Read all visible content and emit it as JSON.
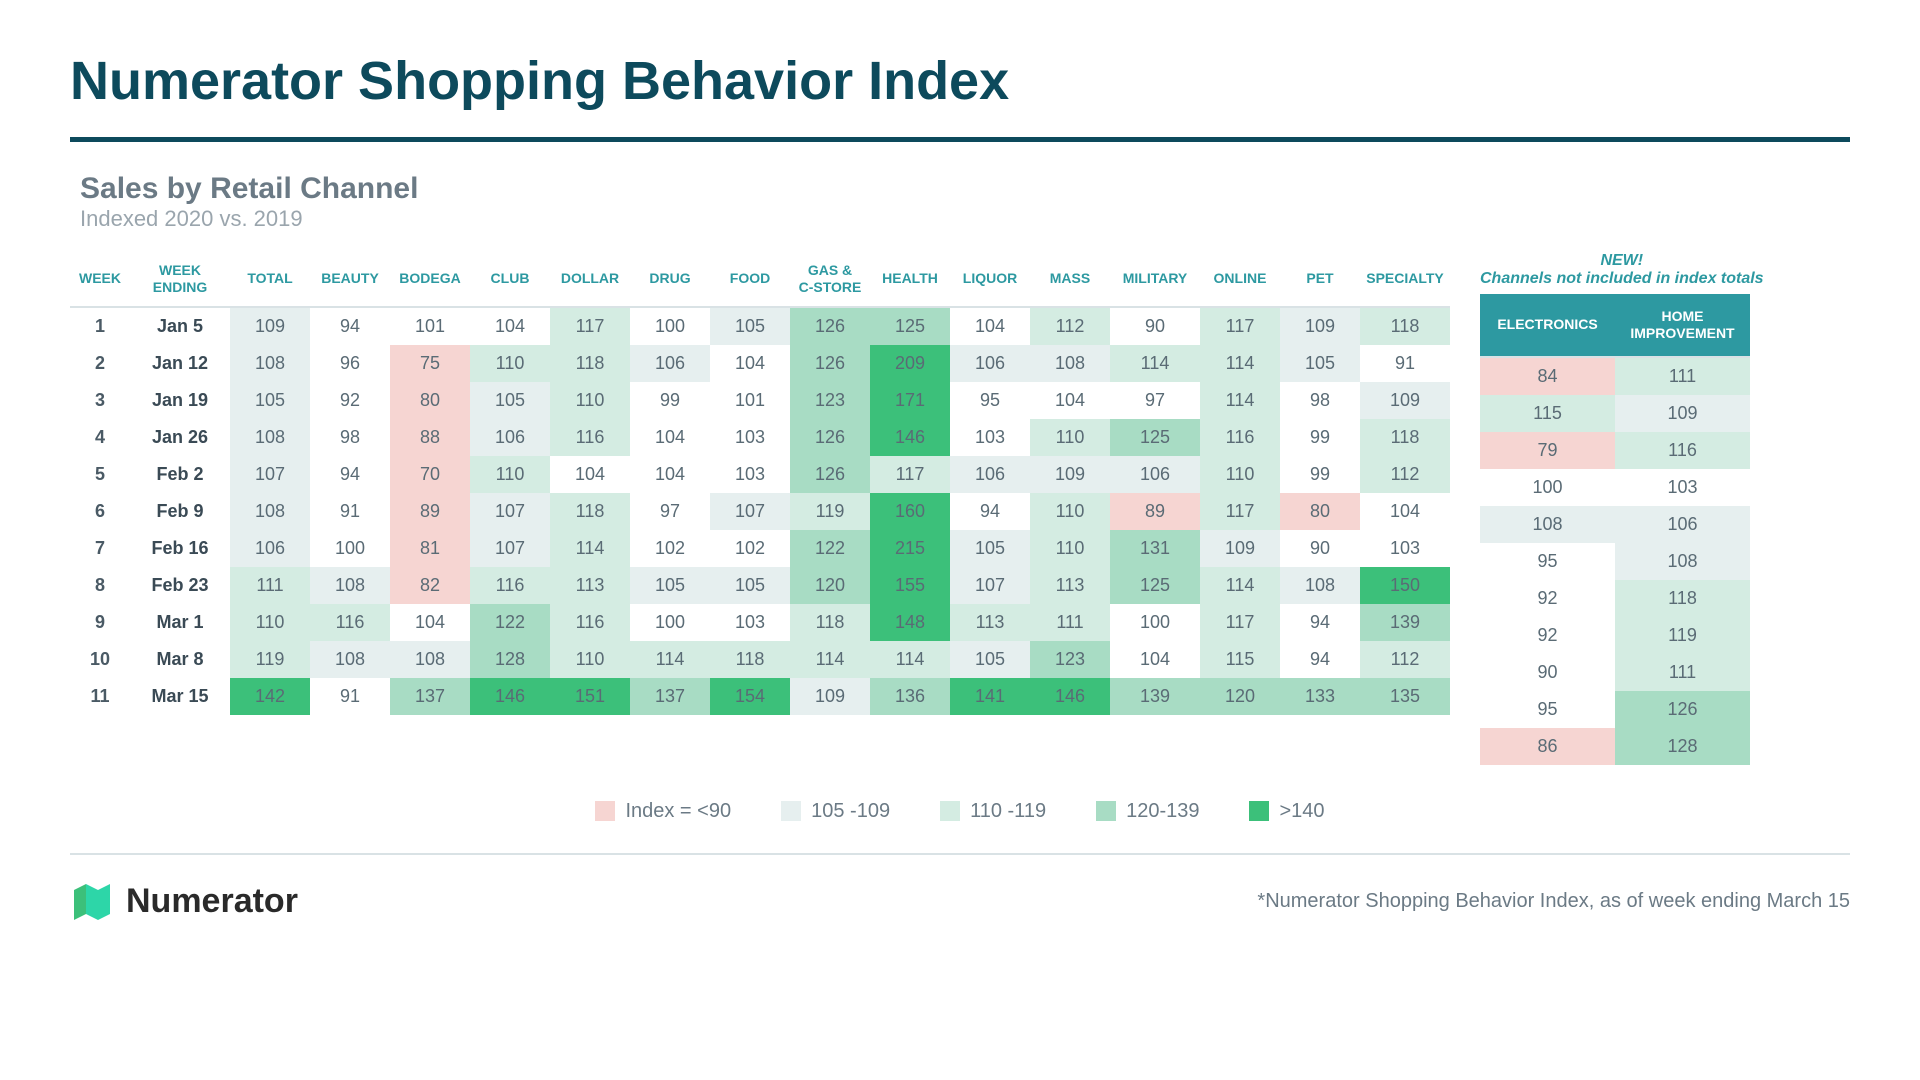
{
  "title": "Numerator Shopping Behavior Index",
  "subtitle": "Sales by Retail Channel",
  "subtitle_note": "Indexed 2020 vs. 2019",
  "new_note_line1": "NEW!",
  "new_note_line2": "Channels not included in index totals",
  "footnote": "*Numerator Shopping Behavior Index, as of week ending March 15",
  "logo_text": "Numerator",
  "columns_main": [
    "WEEK",
    "WEEK ENDING",
    "TOTAL",
    "BEAUTY",
    "BODEGA",
    "CLUB",
    "DOLLAR",
    "DRUG",
    "FOOD",
    "GAS & C-STORE",
    "HEALTH",
    "LIQUOR",
    "MASS",
    "MILITARY",
    "ONLINE",
    "PET",
    "SPECIALTY"
  ],
  "columns_side": [
    "ELECTRONICS",
    "HOME IMPROVEMENT"
  ],
  "col_widths_main": [
    60,
    100,
    80,
    80,
    80,
    80,
    80,
    80,
    80,
    80,
    80,
    80,
    80,
    90,
    80,
    80,
    90
  ],
  "col_widths_side": [
    135,
    135
  ],
  "rows": [
    {
      "week": "1",
      "ending": "Jan 5",
      "main": [
        109,
        94,
        101,
        104,
        117,
        100,
        105,
        126,
        125,
        104,
        112,
        90,
        117,
        109,
        118
      ],
      "side": [
        84,
        111
      ]
    },
    {
      "week": "2",
      "ending": "Jan 12",
      "main": [
        108,
        96,
        75,
        110,
        118,
        106,
        104,
        126,
        209,
        106,
        108,
        114,
        114,
        105,
        91
      ],
      "side": [
        115,
        109
      ]
    },
    {
      "week": "3",
      "ending": "Jan 19",
      "main": [
        105,
        92,
        80,
        105,
        110,
        99,
        101,
        123,
        171,
        95,
        104,
        97,
        114,
        98,
        109
      ],
      "side": [
        79,
        116
      ]
    },
    {
      "week": "4",
      "ending": "Jan 26",
      "main": [
        108,
        98,
        88,
        106,
        116,
        104,
        103,
        126,
        146,
        103,
        110,
        125,
        116,
        99,
        118
      ],
      "side": [
        100,
        103
      ]
    },
    {
      "week": "5",
      "ending": "Feb 2",
      "main": [
        107,
        94,
        70,
        110,
        104,
        104,
        103,
        126,
        117,
        106,
        109,
        106,
        110,
        99,
        112
      ],
      "side": [
        108,
        106
      ]
    },
    {
      "week": "6",
      "ending": "Feb 9",
      "main": [
        108,
        91,
        89,
        107,
        118,
        97,
        107,
        119,
        160,
        94,
        110,
        89,
        117,
        80,
        104
      ],
      "side": [
        95,
        108
      ]
    },
    {
      "week": "7",
      "ending": "Feb 16",
      "main": [
        106,
        100,
        81,
        107,
        114,
        102,
        102,
        122,
        215,
        105,
        110,
        131,
        109,
        90,
        103
      ],
      "side": [
        92,
        118
      ]
    },
    {
      "week": "8",
      "ending": "Feb 23",
      "main": [
        111,
        108,
        82,
        116,
        113,
        105,
        105,
        120,
        155,
        107,
        113,
        125,
        114,
        108,
        150
      ],
      "side": [
        92,
        119
      ]
    },
    {
      "week": "9",
      "ending": "Mar 1",
      "main": [
        110,
        116,
        104,
        122,
        116,
        100,
        103,
        118,
        148,
        113,
        111,
        100,
        117,
        94,
        139
      ],
      "side": [
        90,
        111
      ]
    },
    {
      "week": "10",
      "ending": "Mar 8",
      "main": [
        119,
        108,
        108,
        128,
        110,
        114,
        118,
        114,
        114,
        105,
        123,
        104,
        115,
        94,
        112
      ],
      "side": [
        95,
        126
      ]
    },
    {
      "week": "11",
      "ending": "Mar 15",
      "main": [
        142,
        91,
        137,
        146,
        151,
        137,
        154,
        109,
        136,
        141,
        146,
        139,
        120,
        133,
        135
      ],
      "side": [
        86,
        128
      ]
    }
  ],
  "heatmap": {
    "thresholds": [
      90,
      105,
      110,
      120,
      140
    ],
    "colors": {
      "lt90": "#f6d5d2",
      "b90_104": "#ffffff",
      "b105_109": "#e6efef",
      "b110_119": "#d4ece2",
      "b120_139": "#a8dcc4",
      "gte140": "#3cc07a"
    }
  },
  "legend": [
    {
      "label": "Index = <90",
      "color": "#f6d5d2"
    },
    {
      "label": "105 -109",
      "color": "#e6efef"
    },
    {
      "label": "110 -119",
      "color": "#d4ece2"
    },
    {
      "label": "120-139",
      "color": "#a8dcc4"
    },
    {
      "label": ">140",
      "color": "#3cc07a"
    }
  ],
  "logo_colors": {
    "left": "#3cc07a",
    "right": "#2dd6a8"
  }
}
